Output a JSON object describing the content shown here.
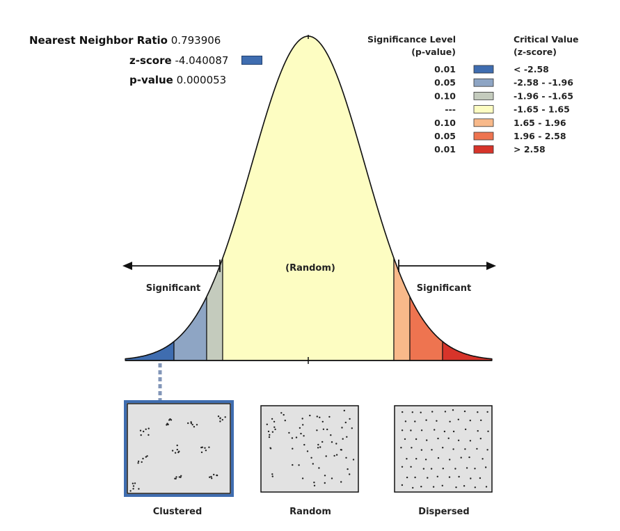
{
  "stats": {
    "nnr_label": "Nearest Neighbor Ratio",
    "nnr_value": "0.793906",
    "z_label": "z-score",
    "z_value": "-4.040087",
    "p_label": "p-value",
    "p_value": "0.000053"
  },
  "legend": {
    "sig_header": [
      "Significance Level",
      "(p-value)"
    ],
    "crit_header": [
      "Critical Value",
      "(z-score)"
    ],
    "rows": [
      {
        "p": "0.01",
        "z": "< -2.58",
        "color": "#3f6db0"
      },
      {
        "p": "0.05",
        "z": "-2.58 - -1.96",
        "color": "#8ea5c4"
      },
      {
        "p": "0.10",
        "z": "-1.96 - -1.65",
        "color": "#c4cbbd"
      },
      {
        "p": "---",
        "z": "-1.65 - 1.65",
        "color": "#fdfdc2"
      },
      {
        "p": "0.10",
        "z": "1.65 - 1.96",
        "color": "#f8b98a"
      },
      {
        "p": "0.05",
        "z": "1.96 - 2.58",
        "color": "#ee7450"
      },
      {
        "p": "0.01",
        "z": "> 2.58",
        "color": "#d7342a"
      }
    ]
  },
  "curve": {
    "random_label": "(Random)",
    "significant_left": "Significant",
    "significant_right": "Significant"
  },
  "patterns": [
    {
      "label": "Clustered",
      "selected": true
    },
    {
      "label": "Random",
      "selected": false
    },
    {
      "label": "Dispersed",
      "selected": false
    }
  ],
  "colors": {
    "z_swatch": "#3f6db0",
    "selection_border": "#3f6db0",
    "pattern_fill": "#e2e2e2"
  }
}
